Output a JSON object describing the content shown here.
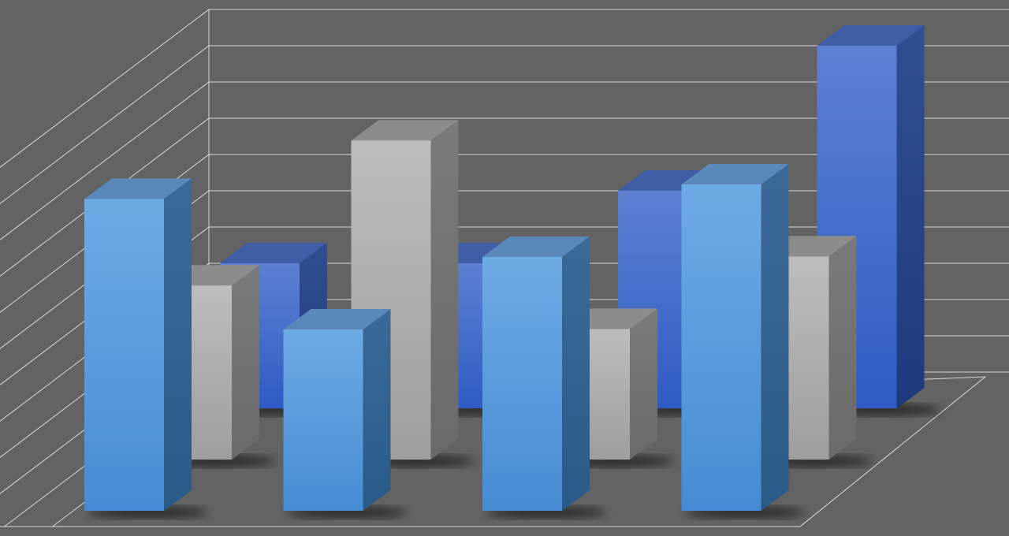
{
  "chart_data": {
    "type": "bar",
    "variant": "3d-clustered-depth",
    "title": "",
    "xlabel": "",
    "ylabel": "",
    "categories": [
      "",
      "",
      "",
      ""
    ],
    "ylim": [
      0,
      11
    ],
    "grid": true,
    "legend": "none",
    "series": [
      {
        "values": [
          4.0,
          4.0,
          6.0,
          10.0
        ],
        "row": "back",
        "color": "#3f6ccc"
      },
      {
        "values": [
          4.8,
          8.8,
          3.6,
          5.6
        ],
        "row": "middle",
        "color": "#b4b4b4"
      },
      {
        "values": [
          8.6,
          5.0,
          7.0,
          9.0
        ],
        "row": "front",
        "color": "#5fa0e0"
      }
    ]
  },
  "colors": {
    "background": "#636363",
    "gridline": "#d8d8d8"
  }
}
